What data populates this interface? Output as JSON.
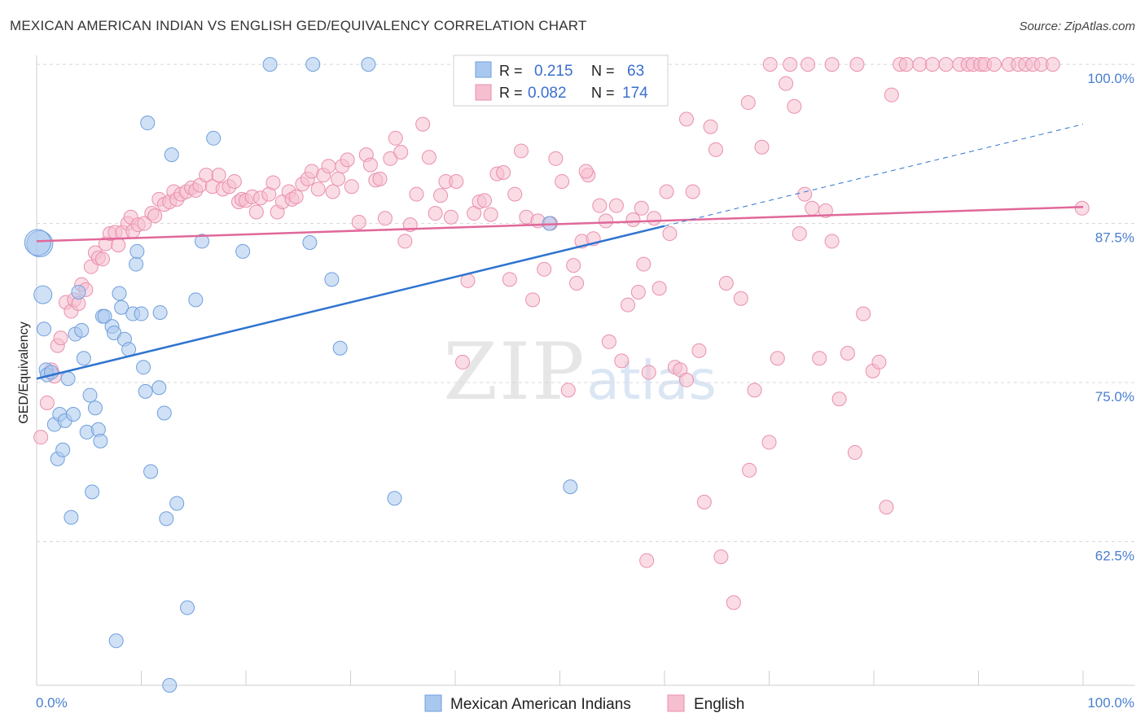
{
  "title": "MEXICAN AMERICAN INDIAN VS ENGLISH GED/EQUIVALENCY CORRELATION CHART",
  "source": "Source: ZipAtlas.com",
  "watermark": {
    "zip": "ZIP",
    "atlas": "atlas"
  },
  "legend": {
    "row1": {
      "r_label": "R =",
      "r_value": "0.215",
      "n_label": "N =",
      "n_value": "63"
    },
    "row2": {
      "r_label": "R =",
      "r_value": "0.082",
      "n_label": "N =",
      "n_value": "174"
    }
  },
  "colors": {
    "blue_fill": "#a9c8ef",
    "blue_stroke": "#6f9fdc",
    "blue_line": "#2f74d0",
    "pink_fill": "#f6bfcf",
    "pink_stroke": "#ea8fad",
    "pink_line": "#e0689a",
    "grid": "#d8d8d8",
    "tick_text": "#4a7fcf"
  },
  "chart_data": {
    "type": "scatter",
    "title": "MEXICAN AMERICAN INDIAN VS ENGLISH GED/EQUIVALENCY CORRELATION CHART",
    "xlabel": "",
    "ylabel": "GED/Equivalency",
    "xlim": [
      0,
      100
    ],
    "ylim": [
      51.2,
      101.8
    ],
    "x_tick_labels": [
      "0.0%",
      "100.0%"
    ],
    "y_ticks": [
      62.5,
      75.0,
      87.5,
      100.0
    ],
    "y_tick_labels": [
      "62.5%",
      "75.0%",
      "87.5%",
      "100.0%"
    ],
    "grid": "horizontal dashed",
    "legend_position": "top-center",
    "series": [
      {
        "name": "Mexican American Indians",
        "r": 0.215,
        "n": 63,
        "trend": {
          "x": [
            0,
            60
          ],
          "y": [
            75.3,
            87.3
          ]
        },
        "points": [
          [
            0.3,
            85.9
          ],
          [
            0.6,
            81.9
          ],
          [
            0.7,
            79.2
          ],
          [
            0.9,
            76.0
          ],
          [
            1.0,
            75.6
          ],
          [
            1.4,
            75.8
          ],
          [
            1.7,
            71.7
          ],
          [
            2.0,
            69.0
          ],
          [
            2.2,
            72.5
          ],
          [
            2.5,
            69.7
          ],
          [
            2.7,
            72.0
          ],
          [
            3.0,
            75.3
          ],
          [
            3.3,
            64.4
          ],
          [
            3.5,
            72.5
          ],
          [
            3.7,
            78.8
          ],
          [
            4.0,
            82.1
          ],
          [
            4.3,
            79.1
          ],
          [
            4.5,
            76.9
          ],
          [
            4.8,
            71.1
          ],
          [
            5.1,
            74.0
          ],
          [
            5.3,
            66.4
          ],
          [
            5.6,
            73.0
          ],
          [
            5.9,
            71.3
          ],
          [
            6.1,
            70.4
          ],
          [
            6.3,
            80.2
          ],
          [
            6.5,
            80.2
          ],
          [
            7.2,
            79.4
          ],
          [
            7.4,
            78.9
          ],
          [
            7.6,
            54.7
          ],
          [
            7.9,
            82.0
          ],
          [
            8.1,
            80.9
          ],
          [
            8.4,
            78.4
          ],
          [
            8.8,
            77.6
          ],
          [
            9.2,
            80.4
          ],
          [
            9.5,
            84.3
          ],
          [
            9.6,
            85.3
          ],
          [
            10.0,
            80.4
          ],
          [
            10.2,
            76.2
          ],
          [
            10.4,
            74.3
          ],
          [
            10.6,
            95.4
          ],
          [
            10.9,
            68.0
          ],
          [
            11.7,
            74.6
          ],
          [
            11.8,
            80.5
          ],
          [
            12.2,
            72.6
          ],
          [
            12.4,
            64.3
          ],
          [
            12.7,
            51.2
          ],
          [
            12.9,
            92.9
          ],
          [
            13.4,
            65.5
          ],
          [
            14.4,
            57.3
          ],
          [
            15.2,
            81.5
          ],
          [
            15.8,
            86.1
          ],
          [
            16.9,
            94.2
          ],
          [
            19.7,
            85.3
          ],
          [
            22.3,
            100.0
          ],
          [
            26.1,
            86.0
          ],
          [
            26.4,
            100.0
          ],
          [
            28.2,
            83.1
          ],
          [
            29.0,
            77.7
          ],
          [
            31.7,
            100.0
          ],
          [
            34.2,
            65.9
          ],
          [
            49.0,
            87.5
          ],
          [
            51.0,
            66.8
          ],
          [
            0.1,
            86.0
          ]
        ]
      },
      {
        "name": "English",
        "r": 0.082,
        "n": 174,
        "trend": {
          "x": [
            0,
            100
          ],
          "y": [
            86.1,
            88.8
          ]
        },
        "points": [
          [
            0.4,
            70.7
          ],
          [
            1.0,
            73.4
          ],
          [
            1.4,
            76.0
          ],
          [
            1.7,
            75.5
          ],
          [
            2.0,
            77.9
          ],
          [
            2.3,
            78.5
          ],
          [
            2.8,
            81.3
          ],
          [
            3.3,
            80.6
          ],
          [
            3.6,
            81.5
          ],
          [
            4.0,
            81.2
          ],
          [
            4.3,
            82.7
          ],
          [
            4.7,
            82.3
          ],
          [
            5.2,
            84.1
          ],
          [
            5.6,
            85.2
          ],
          [
            5.9,
            84.8
          ],
          [
            6.3,
            84.7
          ],
          [
            6.6,
            85.9
          ],
          [
            7.0,
            86.7
          ],
          [
            7.5,
            86.8
          ],
          [
            7.8,
            85.8
          ],
          [
            8.2,
            86.8
          ],
          [
            8.7,
            87.5
          ],
          [
            9.0,
            88.0
          ],
          [
            9.2,
            86.9
          ],
          [
            9.7,
            87.4
          ],
          [
            10.3,
            87.5
          ],
          [
            11.0,
            88.3
          ],
          [
            11.3,
            88.1
          ],
          [
            11.7,
            89.4
          ],
          [
            12.2,
            89.0
          ],
          [
            12.7,
            89.2
          ],
          [
            13.1,
            90.0
          ],
          [
            13.4,
            89.4
          ],
          [
            13.8,
            89.8
          ],
          [
            14.3,
            90.0
          ],
          [
            14.8,
            90.3
          ],
          [
            15.2,
            90.1
          ],
          [
            15.6,
            90.5
          ],
          [
            16.2,
            91.3
          ],
          [
            16.8,
            90.4
          ],
          [
            17.4,
            91.3
          ],
          [
            17.8,
            90.2
          ],
          [
            18.4,
            90.4
          ],
          [
            18.9,
            90.8
          ],
          [
            19.3,
            89.2
          ],
          [
            19.6,
            89.4
          ],
          [
            20.0,
            89.3
          ],
          [
            20.6,
            89.6
          ],
          [
            21.0,
            88.4
          ],
          [
            21.4,
            89.5
          ],
          [
            22.2,
            89.8
          ],
          [
            22.6,
            90.7
          ],
          [
            23.0,
            88.4
          ],
          [
            23.5,
            89.2
          ],
          [
            24.1,
            90.0
          ],
          [
            24.4,
            89.4
          ],
          [
            24.8,
            89.6
          ],
          [
            25.4,
            90.6
          ],
          [
            25.9,
            91.0
          ],
          [
            26.3,
            91.6
          ],
          [
            26.9,
            90.2
          ],
          [
            27.4,
            91.3
          ],
          [
            27.9,
            92.0
          ],
          [
            28.3,
            90.0
          ],
          [
            28.8,
            91.0
          ],
          [
            29.2,
            92.0
          ],
          [
            29.7,
            92.5
          ],
          [
            30.1,
            90.4
          ],
          [
            30.8,
            87.6
          ],
          [
            31.5,
            92.9
          ],
          [
            31.9,
            92.1
          ],
          [
            32.4,
            90.9
          ],
          [
            32.8,
            91.0
          ],
          [
            33.3,
            87.9
          ],
          [
            33.8,
            92.6
          ],
          [
            34.3,
            94.2
          ],
          [
            34.8,
            93.1
          ],
          [
            35.2,
            86.1
          ],
          [
            35.7,
            87.4
          ],
          [
            36.3,
            89.8
          ],
          [
            36.9,
            95.3
          ],
          [
            37.5,
            92.7
          ],
          [
            38.1,
            88.3
          ],
          [
            38.6,
            89.7
          ],
          [
            39.1,
            90.8
          ],
          [
            39.6,
            88.0
          ],
          [
            40.1,
            90.8
          ],
          [
            40.7,
            76.6
          ],
          [
            41.2,
            83.0
          ],
          [
            41.8,
            88.3
          ],
          [
            42.3,
            89.2
          ],
          [
            42.8,
            89.3
          ],
          [
            43.4,
            88.2
          ],
          [
            44.0,
            91.4
          ],
          [
            44.6,
            91.5
          ],
          [
            45.2,
            83.1
          ],
          [
            45.7,
            89.8
          ],
          [
            46.3,
            93.2
          ],
          [
            46.8,
            88.0
          ],
          [
            47.4,
            81.5
          ],
          [
            47.9,
            87.7
          ],
          [
            48.5,
            83.9
          ],
          [
            49.1,
            87.5
          ],
          [
            49.6,
            92.6
          ],
          [
            50.2,
            90.8
          ],
          [
            50.8,
            74.4
          ],
          [
            51.3,
            84.2
          ],
          [
            51.6,
            82.8
          ],
          [
            52.1,
            86.1
          ],
          [
            52.7,
            91.3
          ],
          [
            53.2,
            86.3
          ],
          [
            53.8,
            88.9
          ],
          [
            54.4,
            87.7
          ],
          [
            54.7,
            78.2
          ],
          [
            55.4,
            88.9
          ],
          [
            55.9,
            76.7
          ],
          [
            56.5,
            81.1
          ],
          [
            57.0,
            87.8
          ],
          [
            57.5,
            82.1
          ],
          [
            58.0,
            84.3
          ],
          [
            58.5,
            75.8
          ],
          [
            59.0,
            87.9
          ],
          [
            59.5,
            82.4
          ],
          [
            60.2,
            90.0
          ],
          [
            60.5,
            86.7
          ],
          [
            61.0,
            76.2
          ],
          [
            61.5,
            76.0
          ],
          [
            62.1,
            75.2
          ],
          [
            62.7,
            90.0
          ],
          [
            63.3,
            77.5
          ],
          [
            63.8,
            65.6
          ],
          [
            64.4,
            95.1
          ],
          [
            64.9,
            93.3
          ],
          [
            65.4,
            61.3
          ],
          [
            65.9,
            82.8
          ],
          [
            66.6,
            57.7
          ],
          [
            67.3,
            81.6
          ],
          [
            68.1,
            68.1
          ],
          [
            68.6,
            74.4
          ],
          [
            69.3,
            93.5
          ],
          [
            70.0,
            70.3
          ],
          [
            70.8,
            76.9
          ],
          [
            71.6,
            98.5
          ],
          [
            72.4,
            96.7
          ],
          [
            72.9,
            86.7
          ],
          [
            73.4,
            89.8
          ],
          [
            74.1,
            88.7
          ],
          [
            74.8,
            76.9
          ],
          [
            75.4,
            88.5
          ],
          [
            76.0,
            86.1
          ],
          [
            76.7,
            73.7
          ],
          [
            77.5,
            77.3
          ],
          [
            78.2,
            69.5
          ],
          [
            79.0,
            80.4
          ],
          [
            79.9,
            75.9
          ],
          [
            80.5,
            76.6
          ],
          [
            81.2,
            65.2
          ],
          [
            81.7,
            97.6
          ],
          [
            82.5,
            100.0
          ],
          [
            83.1,
            100.0
          ],
          [
            84.4,
            100.0
          ],
          [
            85.6,
            100.0
          ],
          [
            86.9,
            100.0
          ],
          [
            88.2,
            100.0
          ],
          [
            89.0,
            100.0
          ],
          [
            89.5,
            100.0
          ],
          [
            90.2,
            100.0
          ],
          [
            90.6,
            100.0
          ],
          [
            91.5,
            100.0
          ],
          [
            92.9,
            100.0
          ],
          [
            93.8,
            100.0
          ],
          [
            94.5,
            100.0
          ],
          [
            95.2,
            100.0
          ],
          [
            96.0,
            100.0
          ],
          [
            97.1,
            100.0
          ],
          [
            70.1,
            100.0
          ],
          [
            72.0,
            100.0
          ],
          [
            73.7,
            100.0
          ],
          [
            76.0,
            100.0
          ],
          [
            78.4,
            100.0
          ],
          [
            99.9,
            88.7
          ],
          [
            52.5,
            91.6
          ],
          [
            57.8,
            88.7
          ],
          [
            68.0,
            97.0
          ],
          [
            62.1,
            95.7
          ],
          [
            58.3,
            61.0
          ]
        ]
      }
    ]
  }
}
